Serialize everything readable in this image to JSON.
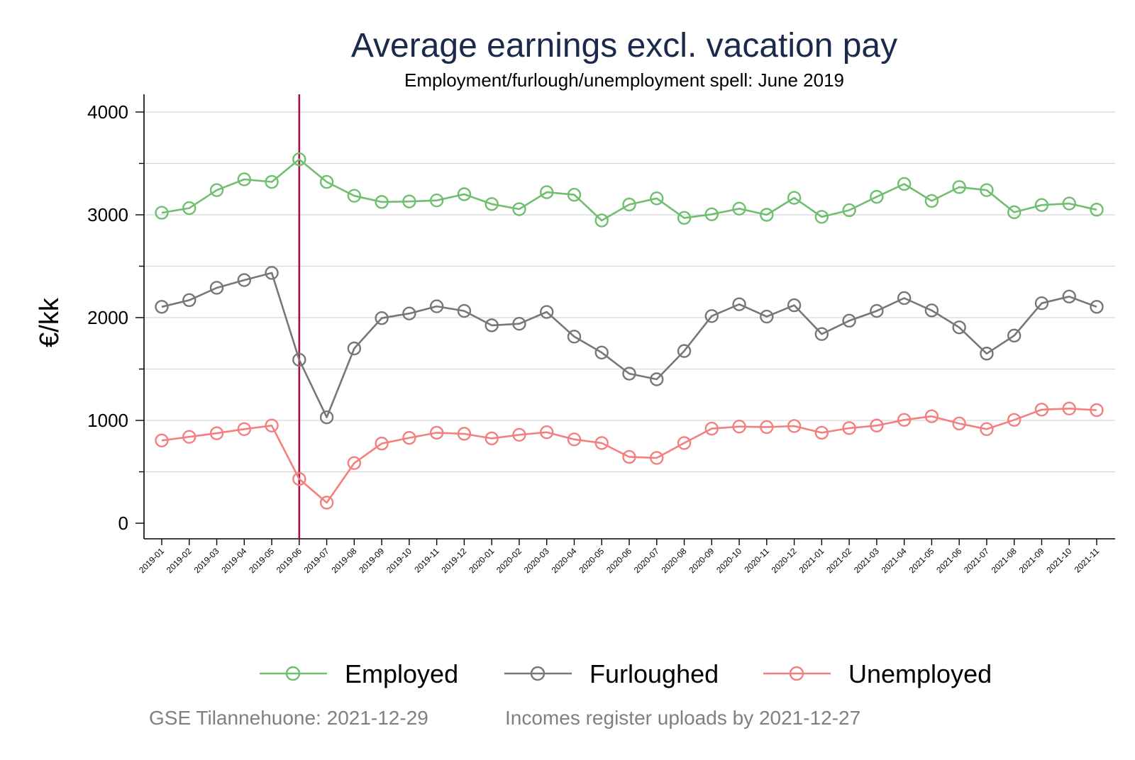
{
  "chart_data": {
    "type": "line",
    "title": "Average earnings excl. vacation pay",
    "subtitle": "Employment/furlough/unemployment spell: June 2019",
    "ylabel": "€/kk",
    "xlabel": "",
    "ylim": [
      0,
      4000
    ],
    "yticks": [
      0,
      1000,
      2000,
      3000,
      4000
    ],
    "grid": true,
    "categories": [
      "2019-01",
      "2019-02",
      "2019-03",
      "2019-04",
      "2019-05",
      "2019-06",
      "2019-07",
      "2019-08",
      "2019-09",
      "2019-10",
      "2019-11",
      "2019-12",
      "2020-01",
      "2020-02",
      "2020-03",
      "2020-04",
      "2020-05",
      "2020-06",
      "2020-07",
      "2020-08",
      "2020-09",
      "2020-10",
      "2020-11",
      "2020-12",
      "2021-01",
      "2021-02",
      "2021-03",
      "2021-04",
      "2021-05",
      "2021-06",
      "2021-07",
      "2021-08",
      "2021-09",
      "2021-10",
      "2021-11"
    ],
    "reference_line": {
      "x": "2019-06",
      "color": "#b0103a"
    },
    "legend_position": "bottom",
    "series": [
      {
        "name": "Employed",
        "color": "#6fbf6f",
        "values": [
          3020,
          3065,
          3240,
          3345,
          3320,
          3540,
          3320,
          3185,
          3125,
          3130,
          3140,
          3200,
          3105,
          3055,
          3220,
          3195,
          2945,
          3100,
          3160,
          2970,
          3005,
          3060,
          3000,
          3165,
          2980,
          3045,
          3175,
          3300,
          3135,
          3270,
          3240,
          3025,
          3095,
          3110,
          3050
        ]
      },
      {
        "name": "Furloughed",
        "color": "#777777",
        "values": [
          2105,
          2170,
          2290,
          2365,
          2435,
          1590,
          1030,
          1700,
          1995,
          2040,
          2110,
          2065,
          1925,
          1940,
          2055,
          1815,
          1660,
          1455,
          1400,
          1675,
          2015,
          2130,
          2010,
          2120,
          1840,
          1970,
          2065,
          2190,
          2070,
          1905,
          1650,
          1825,
          2140,
          2205,
          2105
        ]
      },
      {
        "name": "Unemployed",
        "color": "#f47f7f",
        "values": [
          805,
          840,
          875,
          915,
          950,
          430,
          200,
          585,
          775,
          830,
          880,
          870,
          825,
          860,
          885,
          815,
          780,
          645,
          635,
          780,
          920,
          940,
          935,
          945,
          880,
          925,
          950,
          1005,
          1040,
          970,
          915,
          1005,
          1105,
          1115,
          1100
        ]
      }
    ]
  },
  "footer": {
    "left": "GSE Tilannehuone: 2021-12-29",
    "right": "Incomes register uploads by 2021-12-27"
  }
}
